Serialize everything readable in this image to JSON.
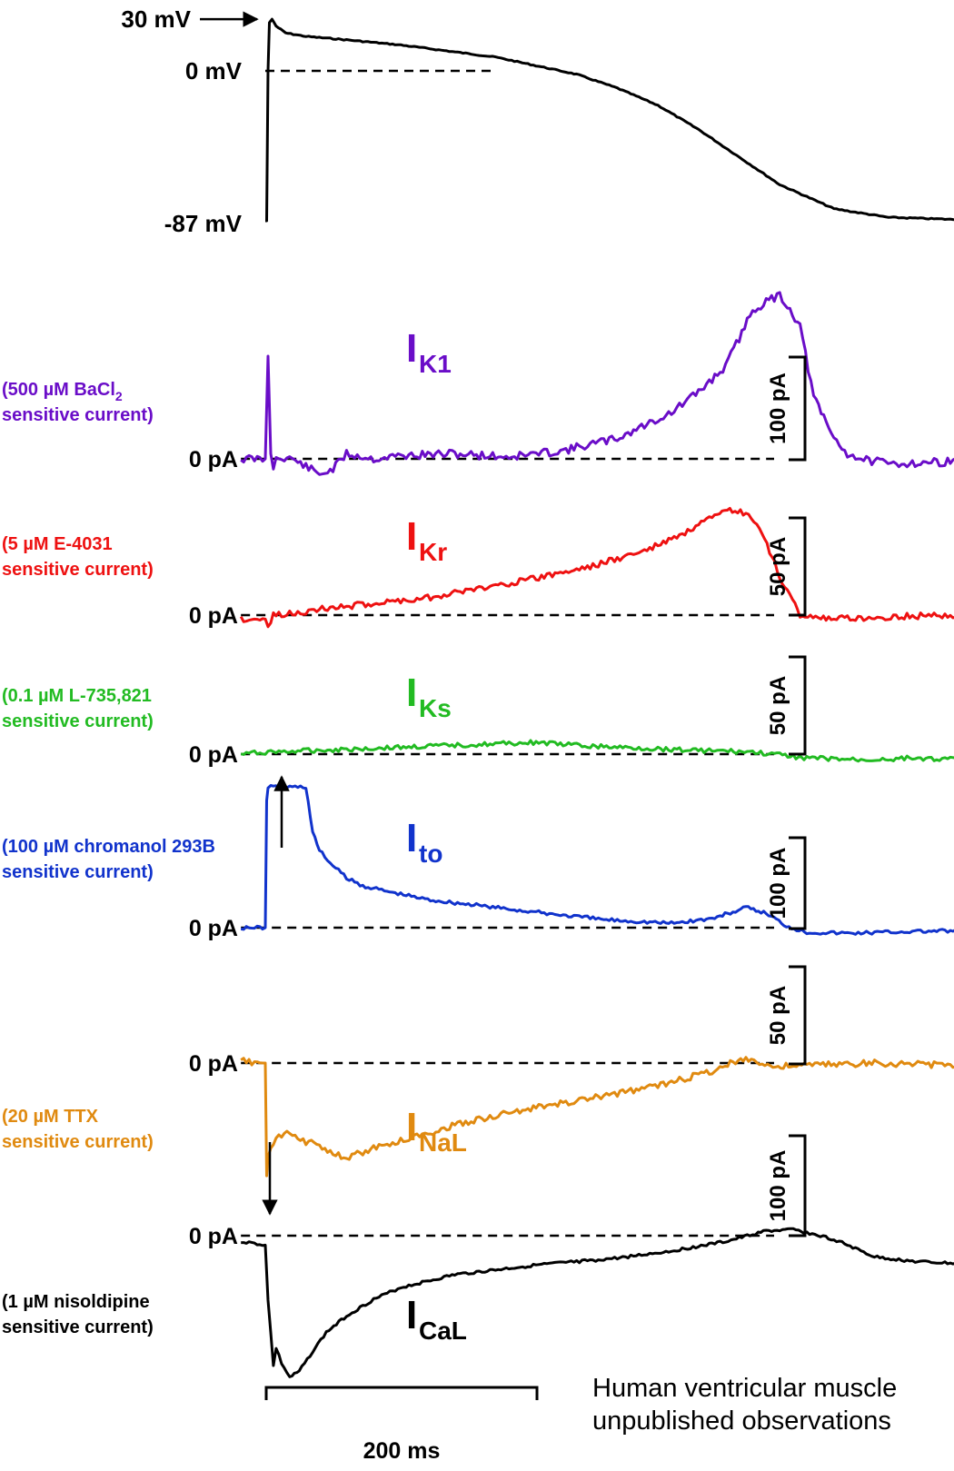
{
  "chart_data": {
    "type": "line",
    "time_scale_bar": {
      "value": 200,
      "unit": "ms",
      "label": "200 ms"
    },
    "action_potential": {
      "labels": {
        "peak": "30 mV",
        "zero": "0 mV",
        "rest": "-87 mV"
      },
      "t": [
        0,
        1,
        2,
        3,
        5,
        8,
        15,
        30,
        60,
        100,
        140,
        170,
        200,
        230,
        260,
        290,
        320,
        350,
        380,
        420,
        460,
        500,
        540,
        580,
        620
      ],
      "v": [
        -87,
        -87,
        0,
        28,
        30,
        26,
        22,
        20,
        18,
        15,
        11,
        8,
        3,
        -2,
        -10,
        -20,
        -34,
        -50,
        -66,
        -80,
        -85,
        -86,
        -87,
        -87,
        -87
      ],
      "color": "#000000"
    },
    "panels": [
      {
        "id": "ik1",
        "label_main": "I",
        "label_sub": "K1",
        "drug_line1": "(500 µM BaCl",
        "drug_line1_sub": "2",
        "drug_line2": "sensitive current)",
        "zero_label": "0 pA",
        "scale_bar": {
          "value": 100,
          "label": "100 pA"
        },
        "color": "#6a0dc8",
        "t": [
          -18,
          0,
          2,
          4,
          6,
          8,
          12,
          20,
          40,
          50,
          60,
          80,
          100,
          140,
          180,
          220,
          260,
          300,
          320,
          340,
          360,
          380,
          395,
          405,
          420,
          430,
          440,
          460,
          500,
          550
        ],
        "i": [
          0,
          0,
          100,
          5,
          -10,
          0,
          2,
          0,
          -15,
          -10,
          5,
          0,
          3,
          5,
          2,
          8,
          20,
          45,
          65,
          90,
          145,
          160,
          130,
          60,
          20,
          5,
          0,
          -5,
          -3,
          0
        ]
      },
      {
        "id": "ikr",
        "label_main": "I",
        "label_sub": "Kr",
        "drug_line1": "(5 µM E-4031",
        "drug_line2": "sensitive current)",
        "zero_label": "0 pA",
        "scale_bar": {
          "value": 50,
          "label": "50 pA"
        },
        "color": "#ee1111",
        "t": [
          -18,
          0,
          2,
          4,
          6,
          10,
          40,
          80,
          120,
          160,
          200,
          240,
          280,
          310,
          330,
          345,
          355,
          365,
          380,
          395,
          420,
          460,
          500,
          560
        ],
        "i": [
          -2,
          -2,
          -6,
          -4,
          0,
          0,
          3,
          6,
          9,
          14,
          19,
          25,
          33,
          42,
          50,
          54,
          52,
          45,
          20,
          0,
          -2,
          -1,
          0,
          -1
        ]
      },
      {
        "id": "iks",
        "label_main": "I",
        "label_sub": "Ks",
        "drug_line1": "(0.1 µM L-735,821",
        "drug_line2": "sensitive current)",
        "zero_label": "0 pA",
        "scale_bar": {
          "value": 50,
          "label": "50 pA"
        },
        "color": "#22bb22",
        "t": [
          -18,
          0,
          40,
          80,
          120,
          160,
          200,
          240,
          280,
          320,
          360,
          400,
          440,
          480,
          520,
          560
        ],
        "i": [
          0,
          1,
          2,
          3,
          4,
          5,
          6,
          4,
          3,
          2,
          1,
          -2,
          -3,
          -2,
          -3,
          -1
        ]
      },
      {
        "id": "ito",
        "label_main": "I",
        "label_sub": "to",
        "drug_line1": "(100 µM chromanol 293B",
        "drug_line2": "sensitive current)",
        "zero_label": "0 pA",
        "scale_bar": {
          "value": 100,
          "label": "100 pA"
        },
        "color": "#1133cc",
        "t": [
          -18,
          0,
          1,
          2,
          30,
          35,
          40,
          50,
          60,
          70,
          90,
          120,
          160,
          200,
          250,
          300,
          330,
          355,
          370,
          385,
          400,
          430,
          480,
          560
        ],
        "i": [
          0,
          0,
          140,
          155,
          155,
          105,
          85,
          68,
          55,
          47,
          40,
          31,
          24,
          17,
          9,
          5,
          10,
          22,
          16,
          2,
          -5,
          -6,
          -4,
          -3
        ]
      },
      {
        "id": "inal",
        "label_main": "I",
        "label_sub": "NaL",
        "drug_line1": "(20 µM TTX",
        "drug_line2": "sensitive current)",
        "zero_label": "0 pA",
        "scale_bar": {
          "value": 50,
          "label": "50 pA"
        },
        "color": "#e08a10",
        "t": [
          -18,
          0,
          1,
          2,
          6,
          10,
          18,
          26,
          40,
          60,
          66,
          80,
          110,
          150,
          200,
          250,
          300,
          330,
          355,
          365,
          375,
          400,
          450,
          500,
          560
        ],
        "i": [
          1,
          0,
          -58,
          -48,
          -42,
          -38,
          -36,
          -40,
          -42,
          -50,
          -47,
          -44,
          -38,
          -30,
          -23,
          -17,
          -10,
          -4,
          3,
          0,
          -2,
          -1,
          0,
          -1,
          0
        ]
      },
      {
        "id": "ical",
        "label_main": "I",
        "label_sub": "CaL",
        "drug_line1": "(1 µM nisoldipine",
        "drug_line2": "sensitive current)",
        "zero_label": "0 pA",
        "scale_bar": {
          "value": 100,
          "label": "100 pA"
        },
        "color": "#000000",
        "t": [
          -18,
          0,
          2,
          6,
          8,
          12,
          18,
          25,
          35,
          45,
          60,
          80,
          100,
          140,
          200,
          260,
          300,
          340,
          370,
          390,
          420,
          450,
          480,
          520,
          570
        ],
        "i": [
          -5,
          -8,
          -55,
          -110,
          -95,
          -108,
          -120,
          -115,
          -98,
          -82,
          -68,
          -54,
          -44,
          -33,
          -25,
          -19,
          -13,
          -5,
          4,
          5,
          -3,
          -18,
          -22,
          -24,
          -20
        ]
      }
    ]
  },
  "footnote": {
    "line1": "Human ventricular muscle",
    "line2": "unpublished observations"
  }
}
